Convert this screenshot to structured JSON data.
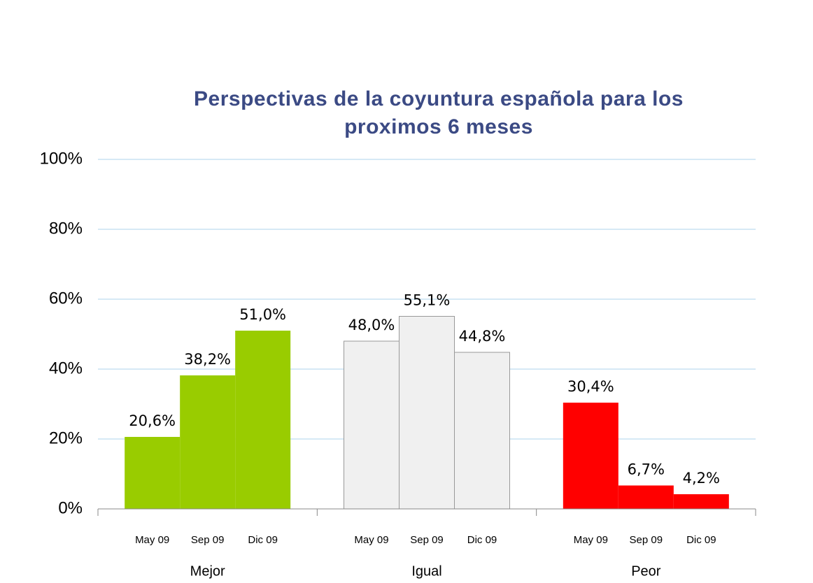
{
  "chart_data": {
    "type": "bar",
    "title": [
      "Perspectivas de la coyuntura española para los",
      "proximos 6 meses"
    ],
    "subcategories": [
      "May 09",
      "Sep 09",
      "Dic  09"
    ],
    "series": [
      {
        "name": "Mejor",
        "color": "#99cc00",
        "values": [
          20.6,
          38.2,
          51.0
        ],
        "value_labels": [
          "20,6%",
          "38,2%",
          "51,0%"
        ]
      },
      {
        "name": "Igual",
        "color": "#f0f0f0",
        "values": [
          48.0,
          55.1,
          44.8
        ],
        "value_labels": [
          "48,0%",
          "55,1%",
          "44,8%"
        ]
      },
      {
        "name": "Peor",
        "color": "#ff0000",
        "values": [
          30.4,
          6.7,
          4.2
        ],
        "value_labels": [
          "30,4%",
          "6,7%",
          "4,2%"
        ]
      }
    ],
    "ylim": [
      0,
      100
    ],
    "yticks": [
      {
        "value": 0,
        "label": "0%"
      },
      {
        "value": 20,
        "label": "20%"
      },
      {
        "value": 40,
        "label": "40%"
      },
      {
        "value": 60,
        "label": "60%"
      },
      {
        "value": 80,
        "label": "80%"
      },
      {
        "value": 100,
        "label": "100%"
      }
    ],
    "grid": true
  }
}
